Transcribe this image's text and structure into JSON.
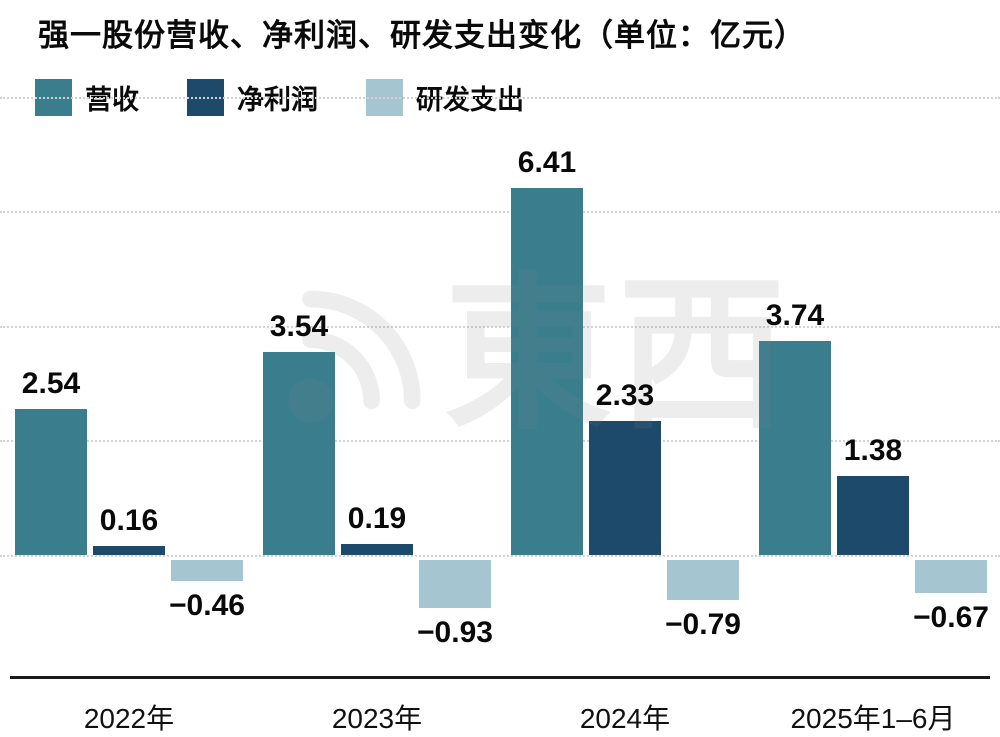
{
  "title": "强一股份营收、净利润、研发支出变化（单位：亿元）",
  "watermark": {
    "text": "東西",
    "icon": "signal-arcs-icon"
  },
  "colors": {
    "revenue": "#3a7e8e",
    "net_profit": "#1d4a6b",
    "rd_expense": "#a5c6d1",
    "gridline": "#d2d2d2",
    "axis": "#1a1a1a",
    "text": "#0a0a0a",
    "background": "#ffffff"
  },
  "chart_data": {
    "type": "bar",
    "title": "强一股份营收、净利润、研发支出变化（单位：亿元）",
    "unit": "亿元",
    "categories": [
      "2022年",
      "2023年",
      "2024年",
      "2025年1–6月"
    ],
    "series": [
      {
        "key": "revenue",
        "name": "营收",
        "color": "#3a7e8e",
        "values": [
          2.54,
          3.54,
          6.41,
          3.74
        ]
      },
      {
        "key": "net-profit",
        "name": "净利润",
        "color": "#1d4a6b",
        "values": [
          0.16,
          0.19,
          2.33,
          1.38
        ]
      },
      {
        "key": "rd-expense",
        "name": "研发支出",
        "color": "#a5c6d1",
        "values": [
          -0.46,
          -0.93,
          -0.79,
          -0.67
        ]
      }
    ],
    "value_labels": {
      "revenue": [
        "2.54",
        "3.54",
        "6.41",
        "3.74"
      ],
      "net_profit": [
        "0.16",
        "0.19",
        "2.33",
        "1.38"
      ],
      "rd_expense": [
        "−0.46",
        "−0.93",
        "−0.79",
        "−0.67"
      ]
    },
    "ylim": [
      -2.1,
      8.1
    ],
    "grid_values": [
      0,
      2,
      4,
      6,
      8
    ],
    "grid": true,
    "legend_position": "top-left",
    "xlabel": "",
    "ylabel": ""
  }
}
